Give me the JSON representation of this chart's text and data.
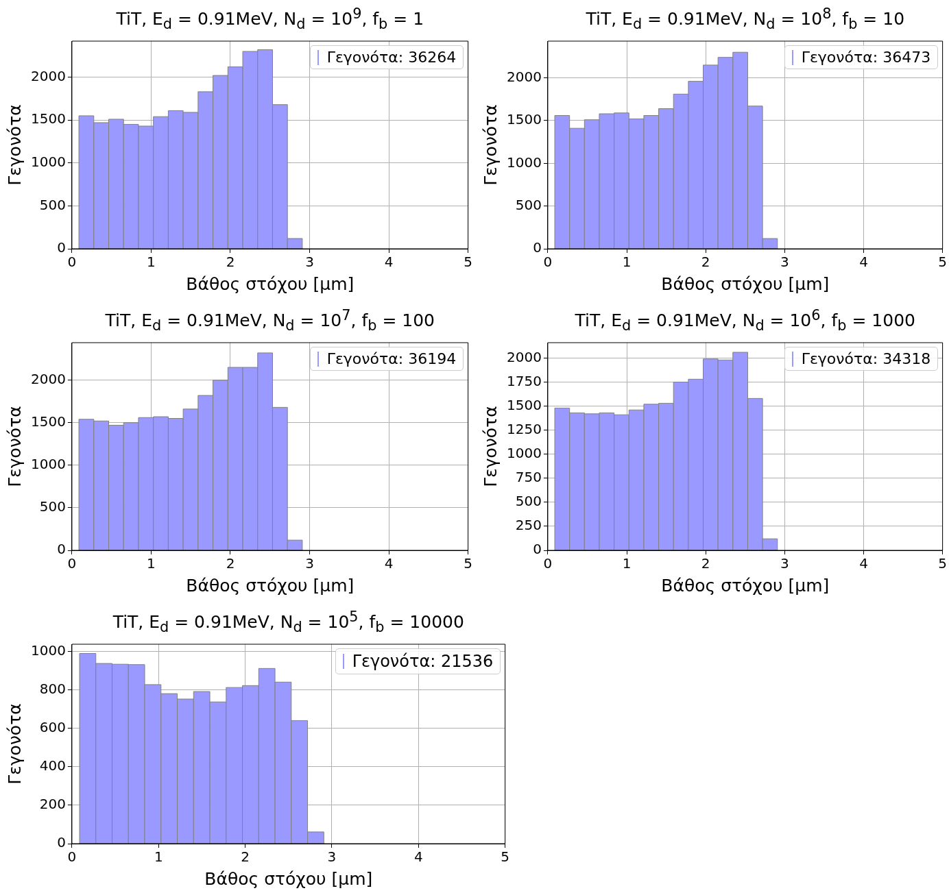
{
  "chart_data": [
    {
      "type": "histogram",
      "title": "TiT, E$_{d}$ = 0.91MeV, N$_{d}$ = 10$^{9}$, f$_{b}$ = 1",
      "xlabel": "Βάθος στόχου [μm]",
      "ylabel": "Γεγονότα",
      "bins": [
        0.088,
        0.276,
        0.464,
        0.652,
        0.84,
        1.028,
        1.216,
        1.404,
        1.592,
        1.78,
        1.968,
        2.156,
        2.344,
        2.532,
        2.72,
        2.908
      ],
      "series": [
        {
          "name": "Γεγονότα: 36264",
          "color": "#9999ff",
          "values": [
            1550,
            1470,
            1510,
            1450,
            1430,
            1540,
            1610,
            1590,
            1830,
            2020,
            2120,
            2300,
            2320,
            1680,
            120
          ]
        }
      ],
      "xlim": [
        0,
        5
      ],
      "xticks": [
        0,
        1,
        2,
        3,
        4,
        5
      ],
      "ylim": [
        0,
        2420
      ],
      "yticks": [
        0,
        500,
        1000,
        1500,
        2000
      ],
      "grid": true,
      "legend": "top right"
    },
    {
      "type": "histogram",
      "title": "TiT, E$_{d}$ = 0.91MeV, N$_{d}$ = 10$^{8}$, f$_{b}$ = 10",
      "xlabel": "Βάθος στόχου [μm]",
      "ylabel": "Γεγονότα",
      "bins": [
        0.088,
        0.276,
        0.464,
        0.652,
        0.84,
        1.028,
        1.216,
        1.404,
        1.592,
        1.78,
        1.968,
        2.156,
        2.344,
        2.532,
        2.72,
        2.908
      ],
      "series": [
        {
          "name": "Γεγονότα: 36473",
          "color": "#9999ff",
          "values": [
            1560,
            1410,
            1510,
            1580,
            1590,
            1520,
            1560,
            1640,
            1810,
            1960,
            2150,
            2240,
            2300,
            1670,
            120
          ]
        }
      ],
      "xlim": [
        0,
        5
      ],
      "xticks": [
        0,
        1,
        2,
        3,
        4,
        5
      ],
      "ylim": [
        0,
        2430
      ],
      "yticks": [
        0,
        500,
        1000,
        1500,
        2000
      ],
      "grid": true,
      "legend": "top right"
    },
    {
      "type": "histogram",
      "title": "TiT, E$_{d}$ = 0.91MeV, N$_{d}$ = 10$^{7}$, f$_{b}$ = 100",
      "xlabel": "Βάθος στόχου [μm]",
      "ylabel": "Γεγονότα",
      "bins": [
        0.088,
        0.276,
        0.464,
        0.652,
        0.84,
        1.028,
        1.216,
        1.404,
        1.592,
        1.78,
        1.968,
        2.156,
        2.344,
        2.532,
        2.72,
        2.908
      ],
      "series": [
        {
          "name": "Γεγονότα: 36194",
          "color": "#9999ff",
          "values": [
            1540,
            1520,
            1470,
            1500,
            1560,
            1570,
            1550,
            1660,
            1820,
            2000,
            2150,
            2150,
            2320,
            1680,
            120
          ]
        }
      ],
      "xlim": [
        0,
        5
      ],
      "xticks": [
        0,
        1,
        2,
        3,
        4,
        5
      ],
      "ylim": [
        0,
        2440
      ],
      "yticks": [
        0,
        500,
        1000,
        1500,
        2000
      ],
      "grid": true,
      "legend": "top right"
    },
    {
      "type": "histogram",
      "title": "TiT, E$_{d}$ = 0.91MeV, N$_{d}$ = 10$^{6}$, f$_{b}$ = 1000",
      "xlabel": "Βάθος στόχου [μm]",
      "ylabel": "Γεγονότα",
      "bins": [
        0.088,
        0.276,
        0.464,
        0.652,
        0.84,
        1.028,
        1.216,
        1.404,
        1.592,
        1.78,
        1.968,
        2.156,
        2.344,
        2.532,
        2.72,
        2.908
      ],
      "series": [
        {
          "name": "Γεγονότα: 34318",
          "color": "#9999ff",
          "values": [
            1480,
            1430,
            1420,
            1430,
            1410,
            1460,
            1520,
            1530,
            1750,
            1780,
            1990,
            1980,
            2060,
            1580,
            120
          ]
        }
      ],
      "xlim": [
        0,
        5
      ],
      "xticks": [
        0,
        1,
        2,
        3,
        4,
        5
      ],
      "ylim": [
        0,
        2160
      ],
      "yticks": [
        0,
        250,
        500,
        750,
        1000,
        1250,
        1500,
        1750,
        2000
      ],
      "grid": true,
      "legend": "top right"
    },
    {
      "type": "histogram",
      "title": "TiT, E$_{d}$ = 0.91MeV, N$_{d}$ = 10$^{5}$, f$_{b}$ = 10000",
      "xlabel": "Βάθος στόχου [μm]",
      "ylabel": "Γεγονότα",
      "bins": [
        0.088,
        0.276,
        0.464,
        0.652,
        0.84,
        1.028,
        1.216,
        1.404,
        1.592,
        1.78,
        1.968,
        2.156,
        2.344,
        2.532,
        2.72,
        2.908
      ],
      "series": [
        {
          "name": "Γεγονότα: 21536",
          "color": "#9999ff",
          "values": [
            989,
            937,
            933,
            931,
            827,
            780,
            752,
            791,
            737,
            812,
            822,
            911,
            840,
            640,
            61
          ]
        }
      ],
      "xlim": [
        0,
        5
      ],
      "xticks": [
        0,
        1,
        2,
        3,
        4,
        5
      ],
      "ylim": [
        0,
        1037
      ],
      "yticks": [
        0,
        200,
        400,
        600,
        800,
        1000
      ],
      "grid": true,
      "legend": "top right"
    }
  ]
}
